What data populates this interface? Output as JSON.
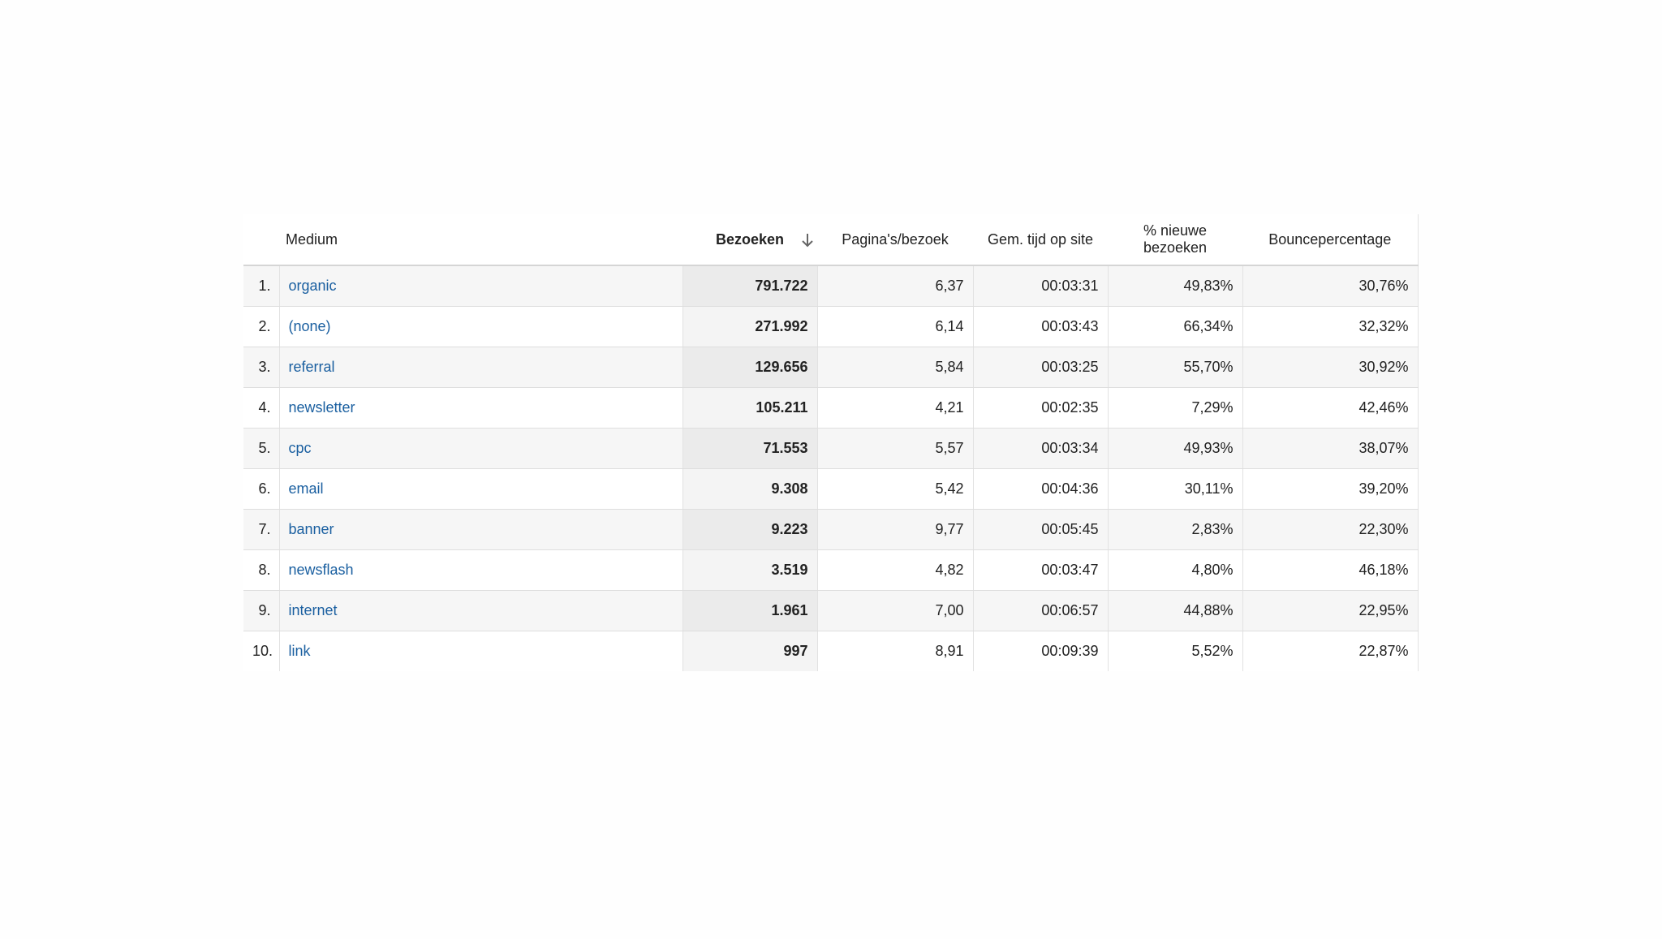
{
  "table": {
    "headers": {
      "medium": "Medium",
      "visits": "Bezoeken",
      "pages_per_visit": "Pagina's/bezoek",
      "avg_time": "Gem. tijd op site",
      "new_visits_line1": "% nieuwe",
      "new_visits_line2": "bezoeken",
      "bounce": "Bouncepercentage"
    },
    "sort_icon": "arrow-down-icon",
    "rows": [
      {
        "num": "1.",
        "medium": "organic",
        "visits": "791.722",
        "pages": "6,37",
        "time": "00:03:31",
        "new": "49,83%",
        "bounce": "30,76%"
      },
      {
        "num": "2.",
        "medium": "(none)",
        "visits": "271.992",
        "pages": "6,14",
        "time": "00:03:43",
        "new": "66,34%",
        "bounce": "32,32%"
      },
      {
        "num": "3.",
        "medium": "referral",
        "visits": "129.656",
        "pages": "5,84",
        "time": "00:03:25",
        "new": "55,70%",
        "bounce": "30,92%"
      },
      {
        "num": "4.",
        "medium": "newsletter",
        "visits": "105.211",
        "pages": "4,21",
        "time": "00:02:35",
        "new": "7,29%",
        "bounce": "42,46%"
      },
      {
        "num": "5.",
        "medium": "cpc",
        "visits": "71.553",
        "pages": "5,57",
        "time": "00:03:34",
        "new": "49,93%",
        "bounce": "38,07%"
      },
      {
        "num": "6.",
        "medium": "email",
        "visits": "9.308",
        "pages": "5,42",
        "time": "00:04:36",
        "new": "30,11%",
        "bounce": "39,20%"
      },
      {
        "num": "7.",
        "medium": "banner",
        "visits": "9.223",
        "pages": "9,77",
        "time": "00:05:45",
        "new": "2,83%",
        "bounce": "22,30%"
      },
      {
        "num": "8.",
        "medium": "newsflash",
        "visits": "3.519",
        "pages": "4,82",
        "time": "00:03:47",
        "new": "4,80%",
        "bounce": "46,18%"
      },
      {
        "num": "9.",
        "medium": "internet",
        "visits": "1.961",
        "pages": "7,00",
        "time": "00:06:57",
        "new": "44,88%",
        "bounce": "22,95%"
      },
      {
        "num": "10.",
        "medium": "link",
        "visits": "997",
        "pages": "8,91",
        "time": "00:09:39",
        "new": "5,52%",
        "bounce": "22,87%"
      }
    ]
  },
  "colors": {
    "link": "#1a5fa0",
    "row_odd": "#f6f6f6",
    "row_even": "#ffffff",
    "sorted_column_odd": "#ebebeb",
    "sorted_column_even": "#f4f4f4"
  }
}
